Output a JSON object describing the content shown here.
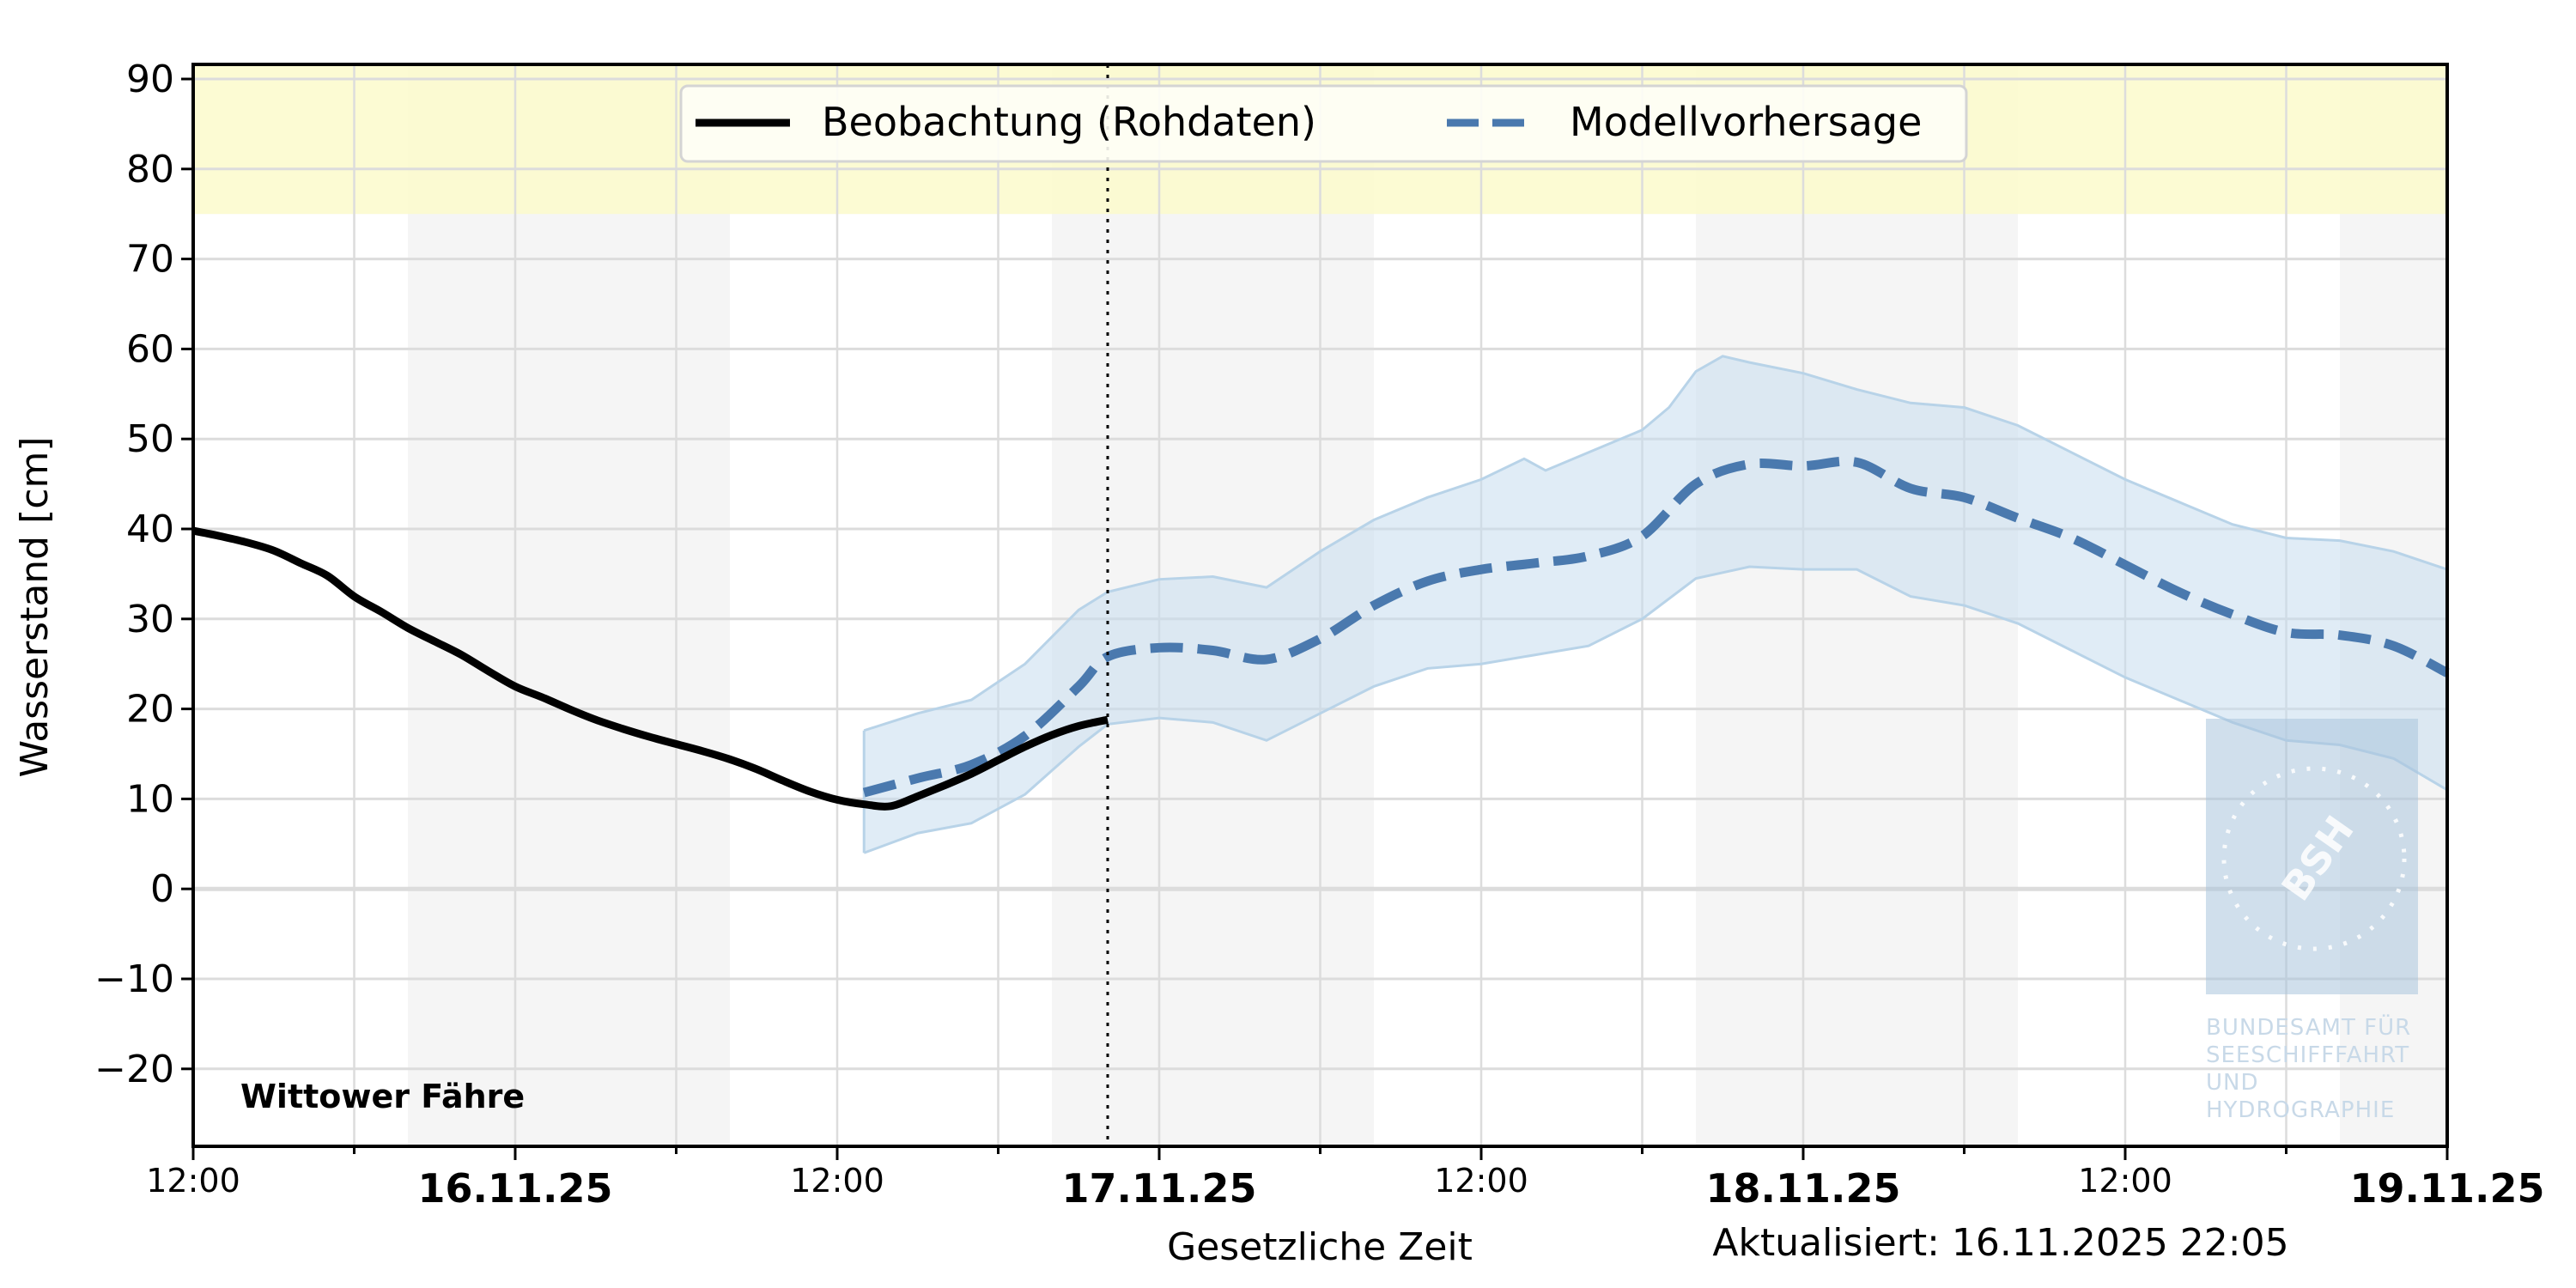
{
  "chart_data": {
    "type": "line",
    "title": "",
    "station": "Wittower Fähre",
    "ylabel": "Wasserstand [cm]",
    "xlabel": "Gesetzliche Zeit",
    "updated": "Aktualisiert: 16.11.2025 22:05",
    "ylim": [
      -28.6,
      91.6
    ],
    "yticks": [
      90,
      80,
      70,
      60,
      50,
      40,
      30,
      20,
      10,
      0,
      -10,
      -20
    ],
    "ytick_labels": [
      "90",
      "80",
      "70",
      "60",
      "50",
      "40",
      "30",
      "20",
      "10",
      "0",
      "−10",
      "−20"
    ],
    "x_unit": "hours since 15.11.25 12:00",
    "xlim_hours": [
      0,
      84
    ],
    "xticks_major": [
      {
        "hour": 0,
        "label": "12:00",
        "kind": "time"
      },
      {
        "hour": 12,
        "label": "16.11.25",
        "kind": "date"
      },
      {
        "hour": 24,
        "label": "12:00",
        "kind": "time"
      },
      {
        "hour": 36,
        "label": "17.11.25",
        "kind": "date"
      },
      {
        "hour": 48,
        "label": "12:00",
        "kind": "time"
      },
      {
        "hour": 60,
        "label": "18.11.25",
        "kind": "date"
      },
      {
        "hour": 72,
        "label": "12:00",
        "kind": "time"
      },
      {
        "hour": 84,
        "label": "19.11.25",
        "kind": "date"
      }
    ],
    "xticks_minor_hours": [
      6,
      18,
      30,
      42,
      54,
      66,
      78
    ],
    "grid": true,
    "now_hour": 34.08,
    "warning_band": {
      "from": 75,
      "color": "#fbfacb"
    },
    "night_bands_hours": [
      [
        8,
        20
      ],
      [
        32,
        44
      ],
      [
        56,
        68
      ],
      [
        80,
        84
      ]
    ],
    "legend": {
      "position": "upper center",
      "entries": [
        {
          "label": "Beobachtung (Rohdaten)",
          "style": "solid",
          "color": "#000000"
        },
        {
          "label": "Modellvorhersage",
          "style": "dashed",
          "color": "#4a79ae"
        }
      ]
    },
    "colors": {
      "observation": "#000000",
      "forecast": "#4a79ae",
      "band_fill": "#c7dcee",
      "band_edge": "#b8d3e8",
      "night": "#f5f5f5",
      "grid": "#dcdcdc"
    },
    "series": [
      {
        "name": "Beobachtung (Rohdaten)",
        "x_hours": [
          0,
          1,
          2,
          3,
          4,
          5,
          6,
          7,
          8,
          9,
          10,
          11,
          12,
          13,
          14,
          15,
          16,
          17,
          18,
          19,
          20,
          21,
          22,
          23,
          24,
          25,
          26,
          27,
          28,
          29,
          30,
          31,
          32,
          33,
          34.08
        ],
        "values": [
          39.8,
          39.2,
          38.5,
          37.6,
          36.2,
          34.8,
          32.5,
          30.8,
          29.0,
          27.5,
          26.0,
          24.2,
          22.5,
          21.3,
          20.0,
          18.8,
          17.8,
          16.9,
          16.1,
          15.3,
          14.4,
          13.3,
          12.0,
          10.8,
          9.9,
          9.4,
          9.2,
          10.3,
          11.5,
          12.8,
          14.3,
          15.8,
          17.1,
          18.1,
          18.8
        ]
      },
      {
        "name": "Modellvorhersage",
        "x_hours": [
          25,
          27,
          29,
          31,
          33,
          34.08,
          36,
          38,
          40,
          42,
          44,
          46,
          48,
          50,
          52,
          54,
          56,
          58,
          60,
          62,
          64,
          66,
          68,
          70,
          72,
          74,
          76,
          78,
          80,
          82,
          84
        ],
        "values": [
          10.7,
          12.3,
          13.8,
          17.0,
          22.5,
          25.8,
          26.8,
          26.5,
          25.5,
          27.8,
          31.5,
          34.2,
          35.5,
          36.2,
          37.0,
          39.2,
          45.0,
          47.2,
          47.0,
          47.4,
          44.5,
          43.5,
          41.2,
          39.0,
          36.0,
          33.0,
          30.5,
          28.5,
          28.2,
          27.0,
          24.0
        ]
      },
      {
        "name": "Vorhersage obere Grenze",
        "x_hours": [
          25,
          27,
          29,
          31,
          33,
          34.08,
          36,
          38,
          40,
          42,
          44,
          46,
          48,
          49.6,
          50.4,
          52,
          54,
          55,
          56,
          57,
          58,
          60,
          62,
          64,
          66,
          68,
          70,
          72,
          74,
          76,
          78,
          80,
          82,
          84
        ],
        "values": [
          17.6,
          19.5,
          21.0,
          25.0,
          31.0,
          33.0,
          34.4,
          34.7,
          33.5,
          37.5,
          41.0,
          43.5,
          45.5,
          47.8,
          46.5,
          48.5,
          51.0,
          53.5,
          57.5,
          59.2,
          58.5,
          57.3,
          55.5,
          54.0,
          53.5,
          51.5,
          48.5,
          45.5,
          43.0,
          40.5,
          39.0,
          38.7,
          37.5,
          35.5
        ]
      },
      {
        "name": "Vorhersage untere Grenze",
        "x_hours": [
          25,
          27,
          29,
          31,
          33,
          34.08,
          36,
          38,
          40,
          42,
          44,
          46,
          48,
          50,
          52,
          54,
          56,
          58,
          60,
          62,
          64,
          66,
          68,
          70,
          72,
          74,
          76,
          78,
          80,
          82,
          84
        ],
        "values": [
          4.0,
          6.2,
          7.3,
          10.5,
          15.8,
          18.3,
          19.0,
          18.5,
          16.5,
          19.5,
          22.5,
          24.5,
          25.0,
          26.0,
          27.0,
          30.0,
          34.5,
          35.8,
          35.5,
          35.5,
          32.5,
          31.5,
          29.5,
          26.5,
          23.5,
          21.0,
          18.5,
          16.5,
          16.0,
          14.5,
          11.0
        ]
      }
    ]
  },
  "logo": {
    "abbr": "BSH",
    "lines": [
      "BUNDESAMT FÜR",
      "SEESCHIFFFAHRT",
      "UND",
      "HYDROGRAPHIE"
    ]
  }
}
